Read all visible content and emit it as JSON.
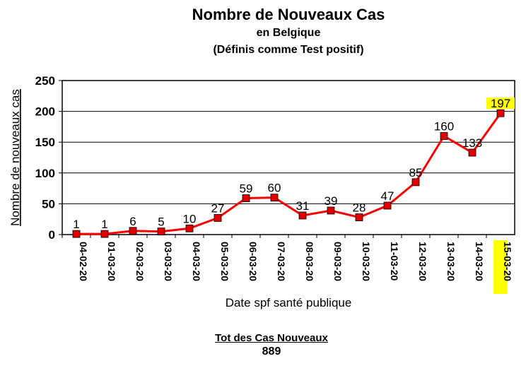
{
  "chart_data": {
    "type": "line",
    "title": "Nombre de Nouveaux Cas",
    "subtitle": "en Belgique",
    "subtitle2": "(Définis comme Test positif)",
    "xlabel": "Date spf santé publique",
    "ylabel": "Nombre de nouveaux cas",
    "ylim": [
      0,
      250
    ],
    "yticks": [
      "0",
      "50",
      "100",
      "150",
      "200",
      "250"
    ],
    "grid": true,
    "categories": [
      "04-02-20",
      "01-03-20",
      "02-03-20",
      "03-03-20",
      "04-03-20",
      "05-03-20",
      "06-03-20",
      "07-03-20",
      "08-03-20",
      "09-03-20",
      "10-03-20",
      "11-03-20",
      "12-03-20",
      "13-03-20",
      "14-03-20",
      "15-03-20"
    ],
    "series": [
      {
        "values": [
          1,
          1,
          6,
          5,
          10,
          27,
          59,
          60,
          31,
          39,
          28,
          47,
          85,
          160,
          133,
          197
        ],
        "color": "#ff0000",
        "marker_color": "#e00000"
      }
    ],
    "highlight_color": "#ffff00",
    "highlight_index": 15
  },
  "total": {
    "label": "Tot des Cas Nouveaux",
    "value": "889"
  }
}
